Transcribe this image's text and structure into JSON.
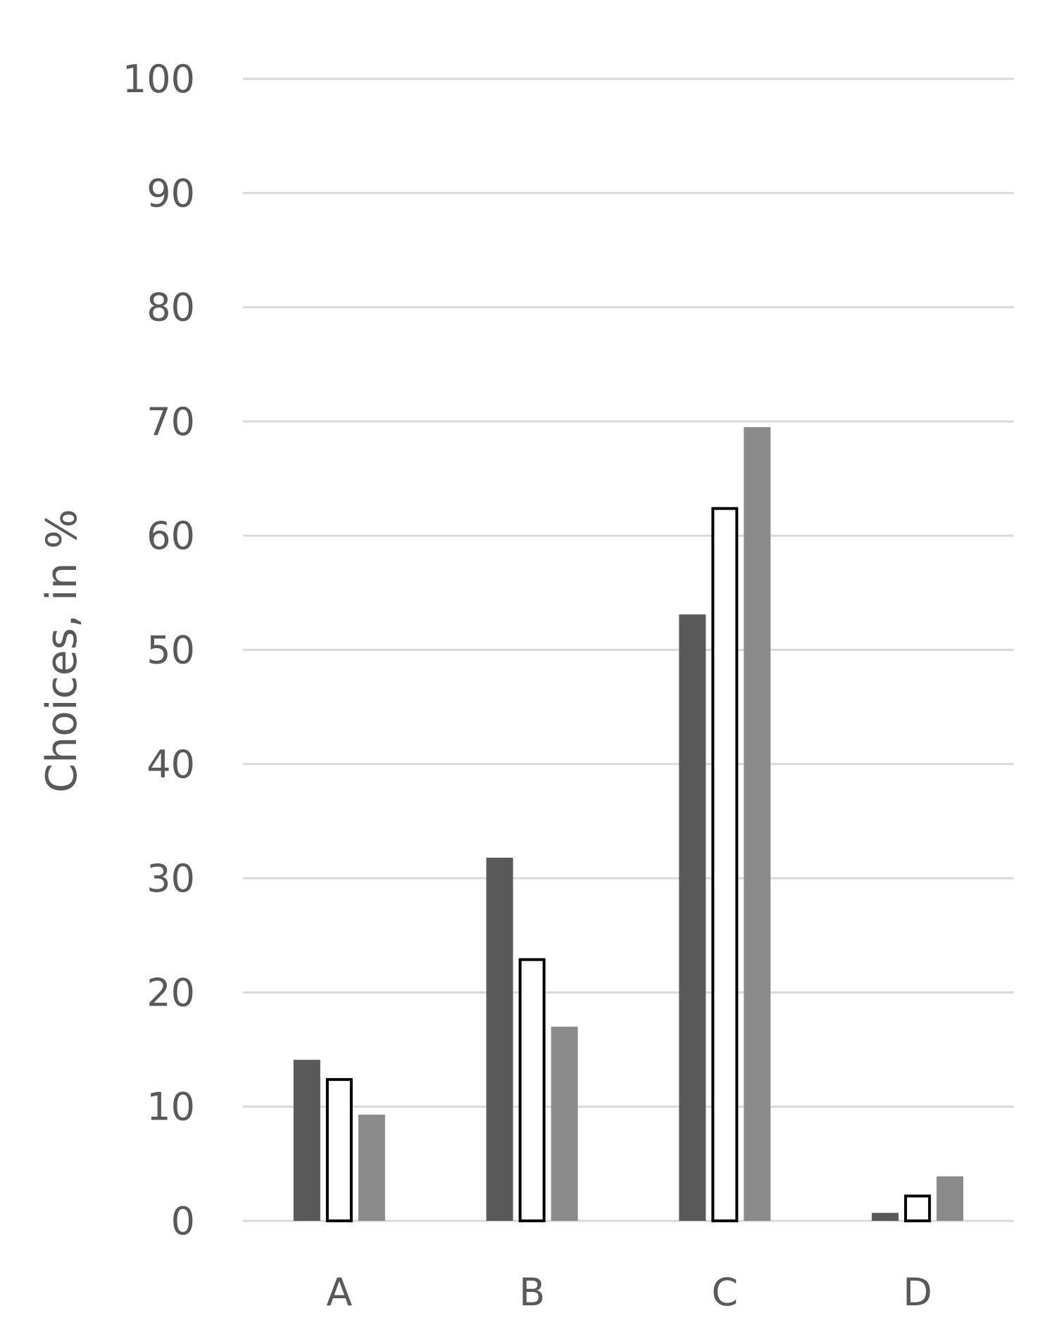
{
  "chart_data": {
    "type": "bar",
    "title": "",
    "xlabel": "",
    "ylabel": "Choices, in %",
    "categories": [
      "A",
      "B",
      "C",
      "D"
    ],
    "ylim": [
      0,
      100
    ],
    "yticks": [
      0,
      10,
      20,
      30,
      40,
      50,
      60,
      70,
      80,
      90,
      100
    ],
    "grid": true,
    "legend": "none",
    "series": [
      {
        "values": [
          14.1,
          31.8,
          53.1,
          0.7
        ],
        "color": "#595959",
        "outlined": false
      },
      {
        "values": [
          12.5,
          23.0,
          62.5,
          2.3
        ],
        "color": "#ffffff",
        "outlined": true
      },
      {
        "values": [
          9.3,
          17.0,
          69.5,
          3.9
        ],
        "color": "#8a8a8a",
        "outlined": false
      }
    ],
    "colors": {
      "gridline": "#d9d9d9",
      "text": "#595959",
      "outline": "#000000"
    }
  }
}
